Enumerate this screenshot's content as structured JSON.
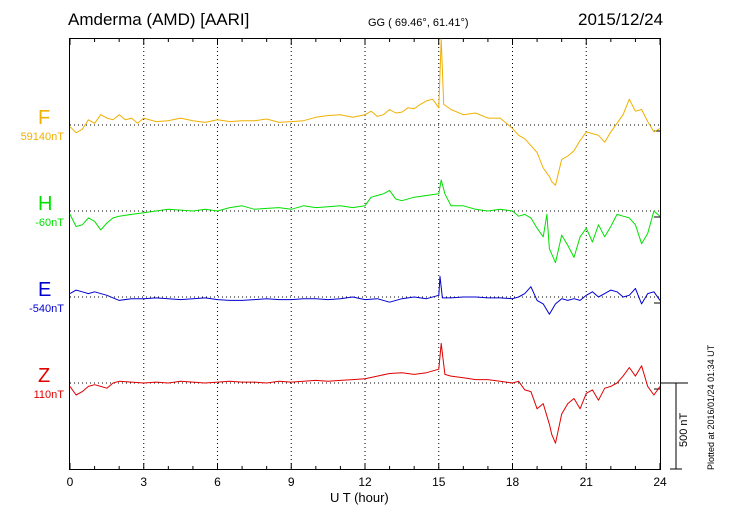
{
  "header": {
    "title": "Amderma (AMD)  [AARI]",
    "coords": "GG ( 69.46°,  61.41°)",
    "date": "2015/12/24"
  },
  "footer": {
    "plotted": "Plotted at 2016/01/24 01:34 UT"
  },
  "chart_data": {
    "type": "line",
    "xlabel": "U T (hour)",
    "xlim": [
      0,
      24
    ],
    "x_ticks": [
      "0",
      "3",
      "6",
      "9",
      "12",
      "15",
      "18",
      "21",
      "24"
    ],
    "grid": true,
    "scale_bar": {
      "value_nT": 500,
      "label": "500 nT"
    },
    "series": [
      {
        "name": "F",
        "baseline": "59140nT",
        "color": "#f0b000",
        "x": [
          0,
          0.25,
          0.5,
          0.75,
          1,
          1.25,
          1.5,
          1.75,
          2,
          2.25,
          2.5,
          2.75,
          3,
          3.5,
          4,
          4.5,
          5,
          5.5,
          6,
          6.5,
          7,
          7.5,
          8,
          8.5,
          9,
          9.5,
          10,
          10.5,
          11,
          11.5,
          12,
          12.25,
          12.5,
          12.75,
          13,
          13.25,
          13.5,
          13.75,
          14,
          14.25,
          14.5,
          14.75,
          15,
          15.1,
          15.2,
          15.5,
          16,
          16.5,
          17,
          17.5,
          18,
          18.25,
          18.5,
          18.75,
          19,
          19.25,
          19.5,
          19.6,
          19.75,
          20,
          20.25,
          20.5,
          20.75,
          21,
          21.25,
          21.5,
          21.75,
          22,
          22.25,
          22.5,
          22.75,
          23,
          23.25,
          23.5,
          23.75,
          24
        ],
        "values": [
          -10,
          -45,
          -25,
          30,
          10,
          60,
          40,
          30,
          60,
          30,
          40,
          10,
          40,
          20,
          25,
          40,
          25,
          15,
          30,
          20,
          25,
          25,
          35,
          15,
          20,
          25,
          45,
          55,
          60,
          45,
          60,
          80,
          50,
          60,
          90,
          70,
          75,
          100,
          95,
          120,
          140,
          150,
          100,
          500,
          120,
          90,
          60,
          70,
          40,
          40,
          -20,
          -60,
          -80,
          -120,
          -160,
          -250,
          -300,
          -330,
          -350,
          -200,
          -180,
          -150,
          -90,
          -40,
          -50,
          -60,
          -100,
          -40,
          10,
          60,
          150,
          80,
          90,
          20,
          -40,
          -20
        ]
      },
      {
        "name": "H",
        "baseline": "-60nT",
        "color": "#00e000",
        "x": [
          0,
          0.25,
          0.5,
          0.75,
          1,
          1.25,
          1.5,
          1.75,
          2,
          2.5,
          3,
          3.5,
          4,
          4.5,
          5,
          5.5,
          6,
          6.5,
          7,
          7.5,
          8,
          8.5,
          9,
          9.5,
          10,
          10.5,
          11,
          11.5,
          12,
          12.25,
          12.5,
          12.75,
          13,
          13.25,
          13.5,
          14,
          14.5,
          15,
          15.1,
          15.25,
          15.5,
          16,
          16.5,
          17,
          17.5,
          18,
          18.25,
          18.5,
          18.75,
          19,
          19.25,
          19.4,
          19.5,
          19.75,
          20,
          20.25,
          20.5,
          20.75,
          21,
          21.25,
          21.5,
          21.75,
          22,
          22.25,
          22.5,
          22.75,
          23,
          23.25,
          23.5,
          23.75,
          24
        ],
        "values": [
          -20,
          -90,
          -80,
          -40,
          -60,
          -110,
          -70,
          -40,
          -30,
          -20,
          -10,
          0,
          10,
          5,
          0,
          10,
          0,
          20,
          30,
          10,
          15,
          20,
          10,
          30,
          20,
          25,
          30,
          20,
          30,
          80,
          90,
          100,
          120,
          70,
          60,
          80,
          90,
          100,
          180,
          100,
          30,
          30,
          10,
          0,
          10,
          0,
          -30,
          -20,
          -40,
          -100,
          -150,
          -20,
          -220,
          -300,
          -140,
          -200,
          -270,
          -150,
          -100,
          -180,
          -80,
          -150,
          -90,
          -20,
          -30,
          -40,
          -80,
          -190,
          -130,
          0,
          -30
        ]
      },
      {
        "name": "E",
        "baseline": "-540nT",
        "color": "#0000d0",
        "x": [
          0,
          0.25,
          0.5,
          0.75,
          1,
          1.5,
          2,
          2.5,
          3,
          3.5,
          4,
          4.5,
          5,
          5.5,
          6,
          6.5,
          7,
          7.5,
          8,
          8.5,
          9,
          9.5,
          10,
          10.5,
          11,
          11.5,
          12,
          12.5,
          13,
          13.5,
          14,
          14.5,
          15,
          15.05,
          15.15,
          15.5,
          16,
          16.5,
          17,
          17.5,
          18,
          18.25,
          18.5,
          18.75,
          19,
          19.25,
          19.5,
          19.75,
          20,
          20.25,
          20.5,
          20.75,
          21,
          21.25,
          21.5,
          21.75,
          22,
          22.25,
          22.5,
          22.75,
          23,
          23.25,
          23.5,
          23.75,
          24
        ],
        "values": [
          20,
          40,
          30,
          20,
          30,
          10,
          -20,
          -10,
          -10,
          -5,
          -10,
          -15,
          -10,
          -5,
          -15,
          -20,
          -20,
          -15,
          -10,
          -15,
          -15,
          -10,
          -10,
          -15,
          -10,
          0,
          -15,
          -10,
          -30,
          -10,
          0,
          -10,
          10,
          120,
          -5,
          -5,
          0,
          0,
          -5,
          -5,
          -10,
          0,
          20,
          60,
          -20,
          -40,
          -100,
          -40,
          -10,
          -20,
          -10,
          -20,
          10,
          30,
          0,
          20,
          40,
          30,
          0,
          10,
          50,
          -40,
          20,
          30,
          -20
        ]
      },
      {
        "name": "Z",
        "baseline": "110nT",
        "color": "#e00000",
        "x": [
          0,
          0.25,
          0.5,
          0.75,
          1,
          1.25,
          1.5,
          1.75,
          2,
          2.5,
          3,
          3.5,
          4,
          4.5,
          5,
          5.5,
          6,
          6.5,
          7,
          7.5,
          8,
          8.5,
          9,
          9.5,
          10,
          10.5,
          11,
          11.5,
          12,
          12.5,
          13,
          13.5,
          14,
          14.5,
          15,
          15.1,
          15.25,
          15.5,
          16,
          16.5,
          17,
          17.5,
          18,
          18.25,
          18.5,
          18.75,
          19,
          19.25,
          19.5,
          19.6,
          19.75,
          20,
          20.25,
          20.5,
          20.75,
          21,
          21.25,
          21.5,
          21.75,
          22,
          22.25,
          22.5,
          22.75,
          23,
          23.25,
          23.5,
          23.75,
          24
        ],
        "values": [
          -20,
          -70,
          -50,
          -20,
          -10,
          -20,
          -30,
          0,
          10,
          5,
          0,
          5,
          0,
          10,
          5,
          0,
          5,
          10,
          5,
          5,
          0,
          10,
          5,
          10,
          15,
          10,
          15,
          20,
          25,
          40,
          55,
          60,
          50,
          60,
          80,
          230,
          50,
          40,
          30,
          20,
          20,
          10,
          0,
          10,
          -40,
          -50,
          -150,
          -120,
          -240,
          -300,
          -350,
          -180,
          -120,
          -90,
          -150,
          -60,
          -40,
          -100,
          -30,
          -20,
          0,
          40,
          90,
          40,
          100,
          -20,
          -70,
          -20
        ]
      }
    ]
  }
}
